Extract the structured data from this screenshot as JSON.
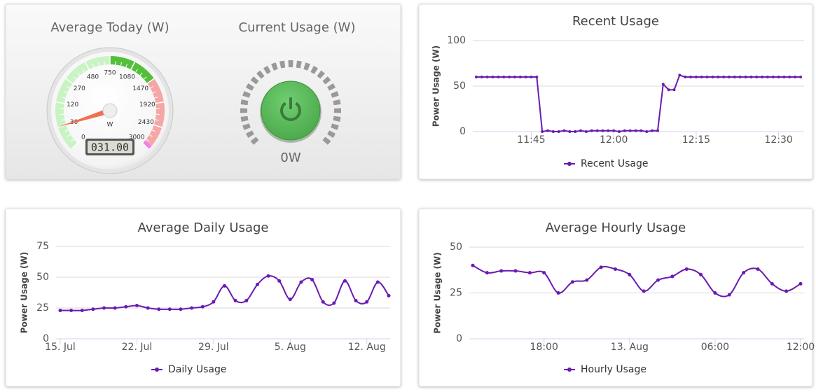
{
  "chart_data": [
    {
      "type": "gauge",
      "title": "Average Today (W)",
      "values": [
        31
      ],
      "value_labels": [
        "031.00"
      ],
      "unit": "W",
      "scale": "sqrt",
      "range": [
        0,
        3000
      ],
      "ticks": [
        0,
        30,
        120,
        270,
        480,
        750,
        1080,
        1470,
        1920,
        2430,
        3000
      ],
      "bands": [
        {
          "from": 0,
          "to": 750,
          "color": "#c9f3c4"
        },
        {
          "from": 750,
          "to": 1470,
          "color": "#55bf3b"
        },
        {
          "from": 1470,
          "to": 2900,
          "color": "#f5a6a6"
        },
        {
          "from": 2900,
          "to": 3000,
          "color": "#f27ef2"
        }
      ],
      "needle_color": "#f07050"
    },
    {
      "type": "indicator",
      "title": "Current Usage (W)",
      "values": [
        0
      ],
      "value_labels": [
        "0W"
      ],
      "color": "#5cb85c"
    },
    {
      "type": "line",
      "title": "Recent Usage",
      "y_label": "Power Usage (W)",
      "smooth": false,
      "x": [
        "11:35",
        "11:36",
        "11:37",
        "11:38",
        "11:39",
        "11:40",
        "11:41",
        "11:42",
        "11:43",
        "11:44",
        "11:45",
        "11:46",
        "11:47",
        "11:48",
        "11:49",
        "11:50",
        "11:51",
        "11:52",
        "11:53",
        "11:54",
        "11:55",
        "11:56",
        "11:57",
        "11:58",
        "11:59",
        "12:00",
        "12:01",
        "12:02",
        "12:03",
        "12:04",
        "12:05",
        "12:06",
        "12:07",
        "12:08",
        "12:09",
        "12:10",
        "12:11",
        "12:12",
        "12:13",
        "12:14",
        "12:15",
        "12:16",
        "12:17",
        "12:18",
        "12:19",
        "12:20",
        "12:21",
        "12:22",
        "12:23",
        "12:24",
        "12:25",
        "12:26",
        "12:27",
        "12:28",
        "12:29",
        "12:30",
        "12:31",
        "12:32",
        "12:33",
        "12:34"
      ],
      "series": [
        {
          "name": "Recent Usage",
          "color": "#6a1bb0",
          "values": [
            60,
            60,
            60,
            60,
            60,
            60,
            60,
            60,
            60,
            60,
            60,
            60,
            0,
            1,
            0,
            0,
            1,
            0,
            0,
            1,
            0,
            1,
            1,
            1,
            1,
            1,
            0,
            1,
            1,
            1,
            1,
            0,
            1,
            1,
            52,
            46,
            46,
            62,
            60,
            60,
            60,
            60,
            60,
            60,
            60,
            60,
            60,
            60,
            60,
            60,
            60,
            60,
            60,
            60,
            60,
            60,
            60,
            60,
            60,
            60
          ]
        }
      ],
      "xlim": [
        "11:35",
        "12:34"
      ],
      "xticks": [
        "11:45",
        "12:00",
        "12:15",
        "12:30"
      ],
      "ylim": [
        0,
        100
      ],
      "yticks": [
        0,
        50,
        100
      ],
      "grid": true
    },
    {
      "type": "line",
      "title": "Average Daily Usage",
      "y_label": "Power Usage (W)",
      "smooth": true,
      "x": [
        "07-15",
        "07-16",
        "07-17",
        "07-18",
        "07-19",
        "07-20",
        "07-21",
        "07-22",
        "07-23",
        "07-24",
        "07-25",
        "07-26",
        "07-27",
        "07-28",
        "07-29",
        "07-30",
        "07-31",
        "08-01",
        "08-02",
        "08-03",
        "08-04",
        "08-05",
        "08-06",
        "08-07",
        "08-08",
        "08-09",
        "08-10",
        "08-11",
        "08-12",
        "08-13",
        "08-14"
      ],
      "series": [
        {
          "name": "Daily Usage",
          "color": "#6a1bb0",
          "values": [
            23,
            23,
            23,
            24,
            25,
            25,
            26,
            27,
            25,
            24,
            24,
            24,
            25,
            26,
            30,
            43,
            31,
            31,
            44,
            51,
            47,
            32,
            46,
            48,
            30,
            29,
            47,
            31,
            30,
            46,
            35
          ]
        }
      ],
      "xlim": [
        "07-15",
        "08-14"
      ],
      "xticks": [
        {
          "value": "07-15",
          "label": "15. Jul"
        },
        {
          "value": "07-22",
          "label": "22. Jul"
        },
        {
          "value": "07-29",
          "label": "29. Jul"
        },
        {
          "value": "08-05",
          "label": "5. Aug"
        },
        {
          "value": "08-12",
          "label": "12. Aug"
        }
      ],
      "ylim": [
        0,
        75
      ],
      "yticks": [
        0,
        25,
        50,
        75
      ],
      "grid": true
    },
    {
      "type": "line",
      "title": "Average Hourly Usage",
      "y_label": "Power Usage (W)",
      "smooth": true,
      "x": [
        "08-12T13:00",
        "08-12T14:00",
        "08-12T15:00",
        "08-12T16:00",
        "08-12T17:00",
        "08-12T18:00",
        "08-12T19:00",
        "08-12T20:00",
        "08-12T21:00",
        "08-12T22:00",
        "08-12T23:00",
        "08-13T00:00",
        "08-13T01:00",
        "08-13T02:00",
        "08-13T03:00",
        "08-13T04:00",
        "08-13T05:00",
        "08-13T06:00",
        "08-13T07:00",
        "08-13T08:00",
        "08-13T09:00",
        "08-13T10:00",
        "08-13T11:00",
        "08-13T12:00"
      ],
      "series": [
        {
          "name": "Hourly Usage",
          "color": "#6a1bb0",
          "values": [
            40,
            36,
            37,
            37,
            36,
            36,
            25,
            31,
            32,
            39,
            38,
            35,
            26,
            32,
            34,
            38,
            35,
            25,
            24,
            36,
            38,
            30,
            26,
            30
          ]
        }
      ],
      "xlim": [
        "08-12T13:00",
        "08-13T12:00"
      ],
      "xticks": [
        {
          "value": "08-12T18:00",
          "label": "18:00"
        },
        {
          "value": "08-13T00:00",
          "label": "13. Aug"
        },
        {
          "value": "08-13T06:00",
          "label": "06:00"
        },
        {
          "value": "08-13T12:00",
          "label": "12:00"
        }
      ],
      "ylim": [
        0,
        50
      ],
      "yticks": [
        0,
        25,
        50
      ],
      "grid": true
    }
  ]
}
